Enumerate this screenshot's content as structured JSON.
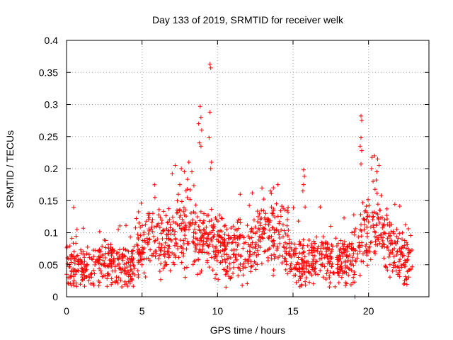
{
  "chart_data": {
    "type": "scatter",
    "title": "Day 133 of 2019, SRMTID for receiver welk",
    "xlabel": "GPS time / hours",
    "ylabel": "SRMTID / TECUs",
    "xlim": [
      0,
      24
    ],
    "ylim": [
      0,
      0.4
    ],
    "x_ticks": [
      0,
      5,
      10,
      15,
      20
    ],
    "x_tick_labels": [
      "0",
      "5",
      "10",
      "15",
      "20"
    ],
    "y_ticks": [
      0,
      0.05,
      0.1,
      0.15,
      0.2,
      0.25,
      0.3,
      0.35,
      0.4
    ],
    "y_tick_labels": [
      "0",
      "0.05",
      "0.1",
      "0.15",
      "0.2",
      "0.25",
      "0.3",
      "0.35",
      "0.4"
    ],
    "grid": true,
    "marker": "+",
    "series": [
      {
        "name": "SRMTID",
        "color": "#ff0000",
        "trend": {
          "x": [
            0,
            0.5,
            1,
            1.5,
            2,
            2.5,
            3,
            3.5,
            4,
            4.5,
            5,
            5.5,
            6,
            6.5,
            7,
            7.5,
            8,
            8.5,
            9,
            9.5,
            10,
            10.5,
            11,
            11.5,
            12,
            12.5,
            13,
            13.5,
            14,
            14.5,
            15,
            15.5,
            16,
            16.5,
            17,
            17.5,
            18,
            18.5,
            19,
            19.5,
            20,
            20.5,
            21,
            21.5,
            22,
            22.5,
            22.9
          ],
          "y": [
            0.048,
            0.052,
            0.045,
            0.042,
            0.05,
            0.055,
            0.05,
            0.048,
            0.045,
            0.06,
            0.075,
            0.085,
            0.09,
            0.085,
            0.095,
            0.11,
            0.105,
            0.095,
            0.09,
            0.09,
            0.085,
            0.075,
            0.072,
            0.068,
            0.065,
            0.08,
            0.1,
            0.105,
            0.095,
            0.085,
            0.065,
            0.052,
            0.055,
            0.062,
            0.06,
            0.055,
            0.05,
            0.055,
            0.06,
            0.085,
            0.11,
            0.115,
            0.1,
            0.08,
            0.065,
            0.055,
            0.05
          ]
        },
        "spread": 0.022,
        "points": [
          [
            8.85,
            0.297
          ],
          [
            8.9,
            0.28
          ],
          [
            8.95,
            0.26
          ],
          [
            8.8,
            0.24
          ],
          [
            8.9,
            0.235
          ],
          [
            8.75,
            0.27
          ],
          [
            9.5,
            0.363
          ],
          [
            9.55,
            0.357
          ],
          [
            9.5,
            0.288
          ],
          [
            9.45,
            0.248
          ],
          [
            9.6,
            0.21
          ],
          [
            9.55,
            0.2
          ],
          [
            7.2,
            0.205
          ],
          [
            7.0,
            0.192
          ],
          [
            7.6,
            0.2
          ],
          [
            7.8,
            0.195
          ],
          [
            8.1,
            0.21
          ],
          [
            8.3,
            0.195
          ],
          [
            7.5,
            0.175
          ],
          [
            7.4,
            0.16
          ],
          [
            8.0,
            0.168
          ],
          [
            19.5,
            0.282
          ],
          [
            19.55,
            0.275
          ],
          [
            19.5,
            0.248
          ],
          [
            19.45,
            0.235
          ],
          [
            19.55,
            0.228
          ],
          [
            19.5,
            0.207
          ],
          [
            20.2,
            0.2
          ],
          [
            20.4,
            0.22
          ],
          [
            20.6,
            0.215
          ],
          [
            20.7,
            0.205
          ],
          [
            20.55,
            0.195
          ],
          [
            20.3,
            0.18
          ],
          [
            15.7,
            0.198
          ],
          [
            15.75,
            0.188
          ],
          [
            15.7,
            0.175
          ],
          [
            15.65,
            0.165
          ],
          [
            15.8,
            0.14
          ],
          [
            13.5,
            0.165
          ],
          [
            13.7,
            0.17
          ],
          [
            14.0,
            0.175
          ],
          [
            12.3,
            0.162
          ],
          [
            11.5,
            0.16
          ],
          [
            13.9,
            0.145
          ],
          [
            4.95,
            0.146
          ],
          [
            5.4,
            0.13
          ],
          [
            5.3,
            0.118
          ],
          [
            4.8,
            0.115
          ],
          [
            16.8,
            0.14
          ],
          [
            17.5,
            0.11
          ],
          [
            19.1,
            0.0
          ]
        ]
      }
    ]
  }
}
